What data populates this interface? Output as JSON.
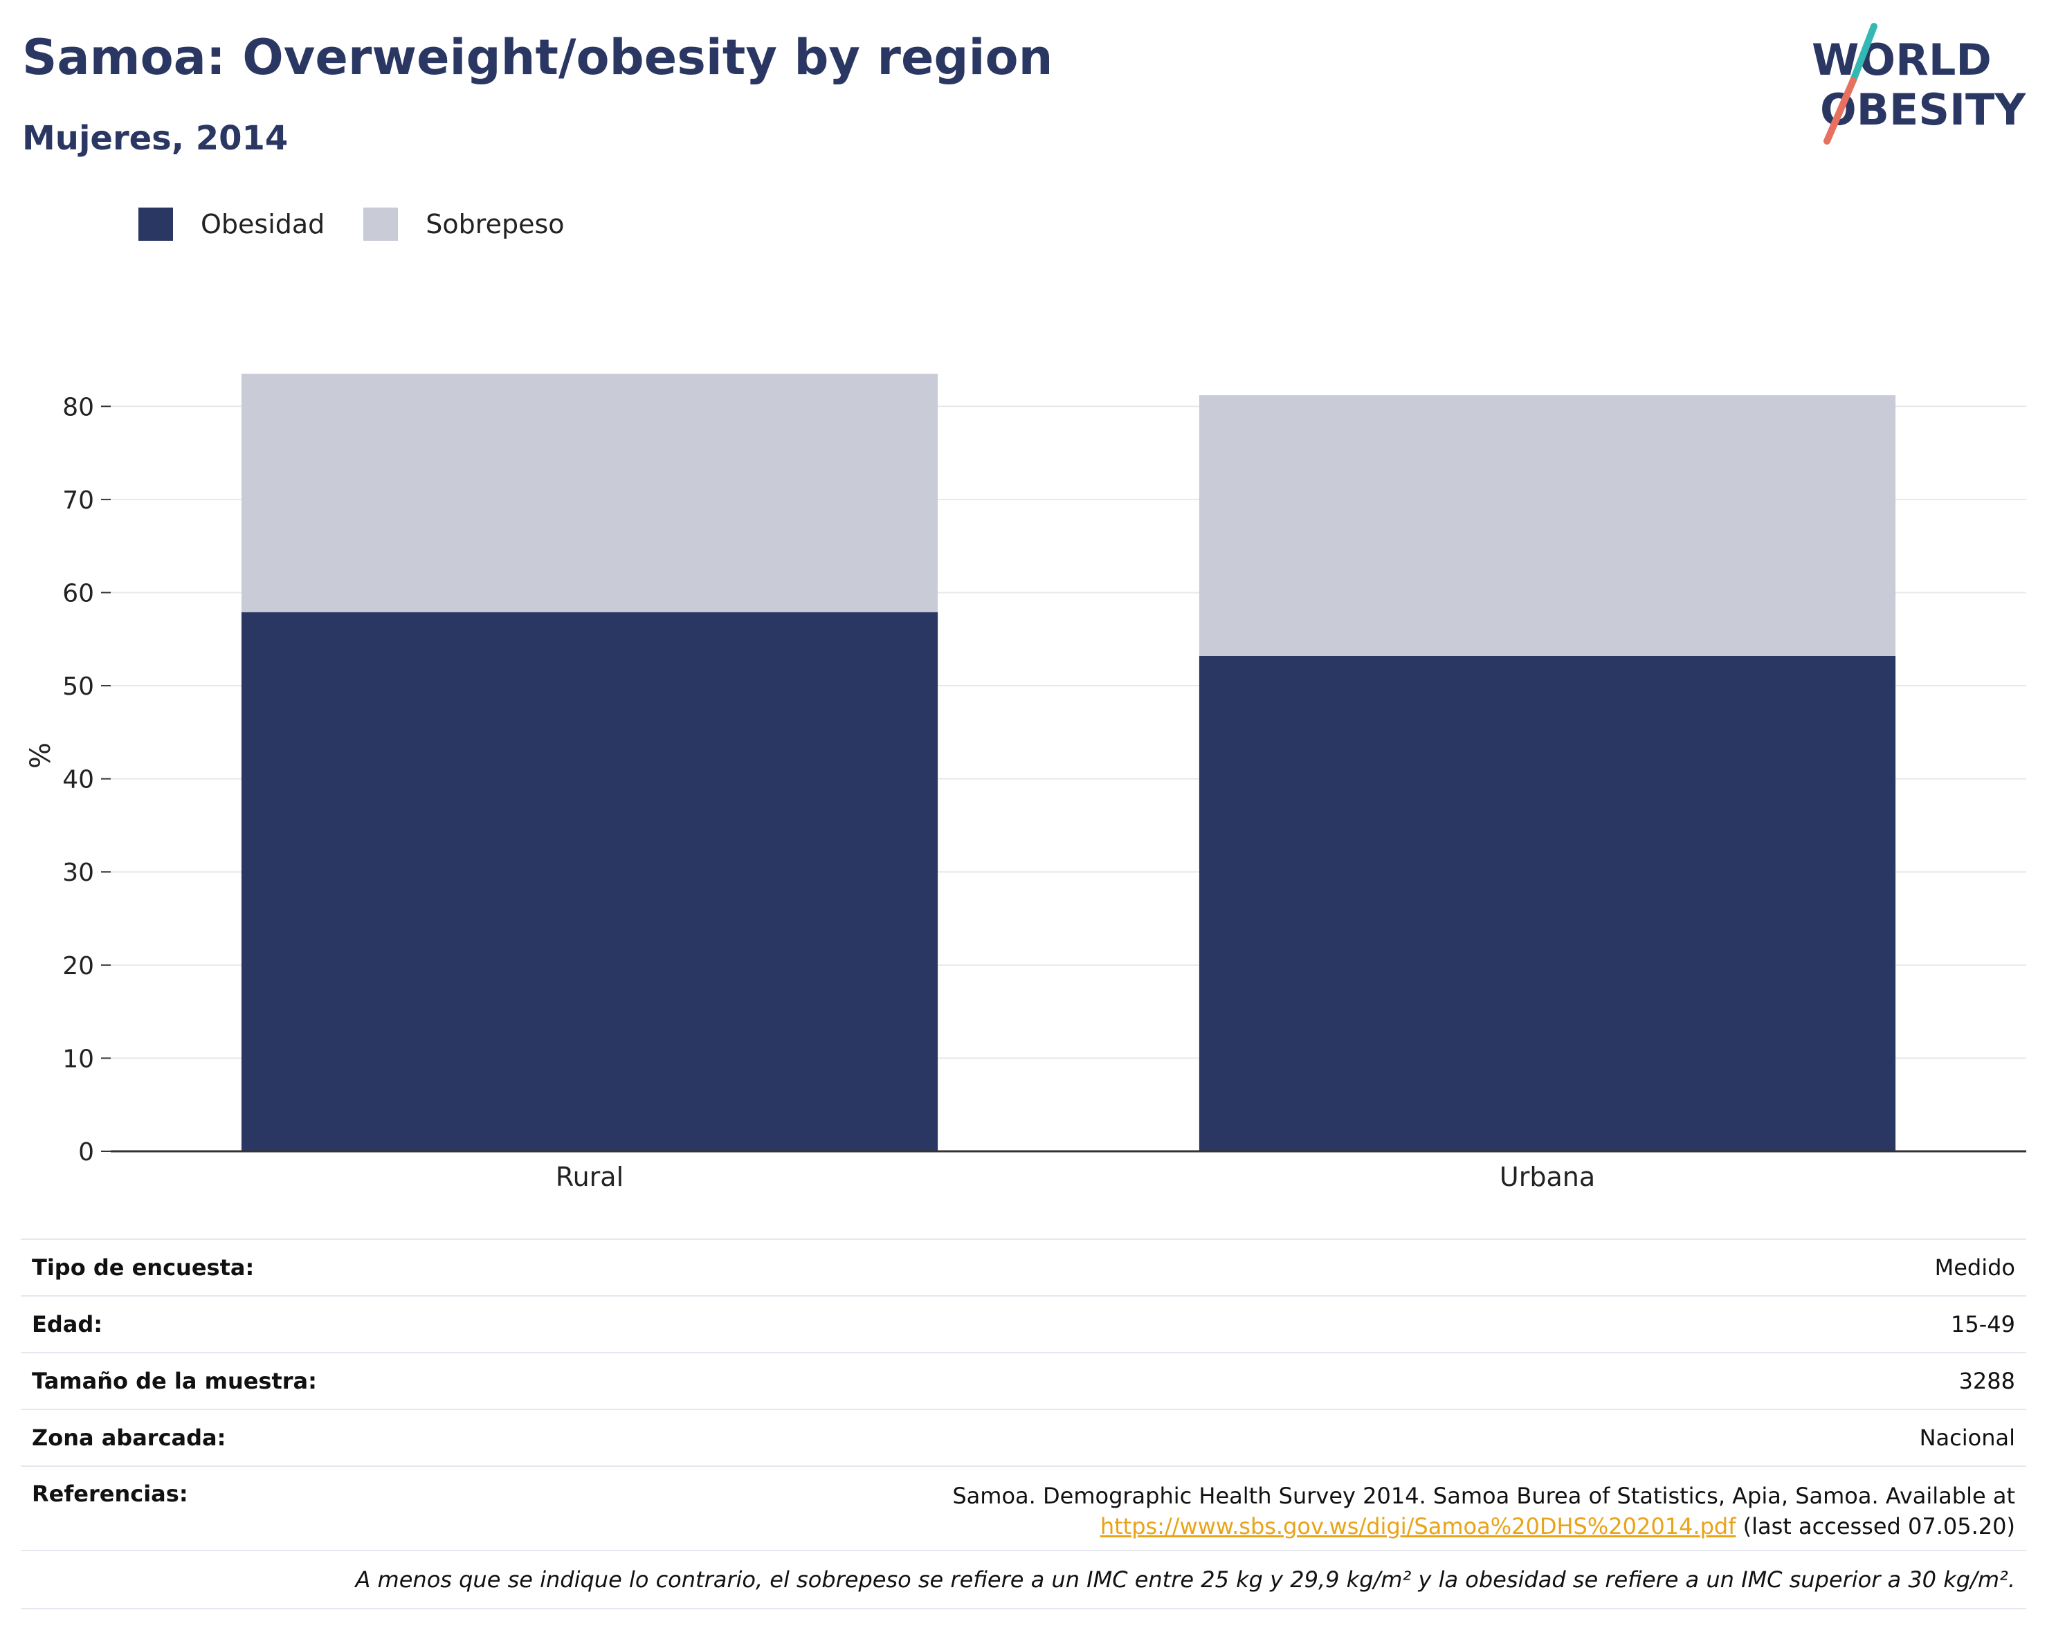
{
  "header": {
    "title": "Samoa: Overweight/obesity by region",
    "subtitle": "Mujeres, 2014"
  },
  "logo": {
    "line1": "WORLD",
    "line2": "OBESITY"
  },
  "colors": {
    "obesity": "#2b3763",
    "overweight": "#c9ccd7",
    "grid": "#e8e8ee",
    "axis": "#333333",
    "link": "#e8a317"
  },
  "chart_data": {
    "type": "bar",
    "stacked": true,
    "categories": [
      "Rural",
      "Urbana"
    ],
    "series": [
      {
        "name": "Obesidad",
        "values": [
          57.9,
          53.2
        ]
      },
      {
        "name": "Sobrepeso",
        "values": [
          25.6,
          28.0
        ]
      }
    ],
    "ylabel": "%",
    "ylim": [
      0,
      85
    ],
    "yticks": [
      0,
      10,
      20,
      30,
      40,
      50,
      60,
      70,
      80
    ],
    "grid": true,
    "legend": "top-left"
  },
  "info": {
    "survey_type": {
      "label": "Tipo de encuesta:",
      "value": "Medido"
    },
    "age": {
      "label": "Edad:",
      "value": "15-49"
    },
    "sample": {
      "label": "Tamaño de la muestra:",
      "value": "3288"
    },
    "area": {
      "label": "Zona abarcada:",
      "value": "Nacional"
    },
    "references": {
      "label": "Referencias:",
      "text": "Samoa. Demographic Health Survey 2014. Samoa Burea of Statistics, Apia, Samoa. Available at",
      "link": "https://www.sbs.gov.ws/digi/Samoa%20DHS%202014.pdf",
      "suffix": " (last accessed 07.05.20)"
    },
    "note": "A menos que se indique lo contrario, el sobrepeso se refiere a un IMC entre 25 kg y 29,9 kg/m² y la obesidad se refiere a un IMC superior a 30 kg/m²."
  }
}
